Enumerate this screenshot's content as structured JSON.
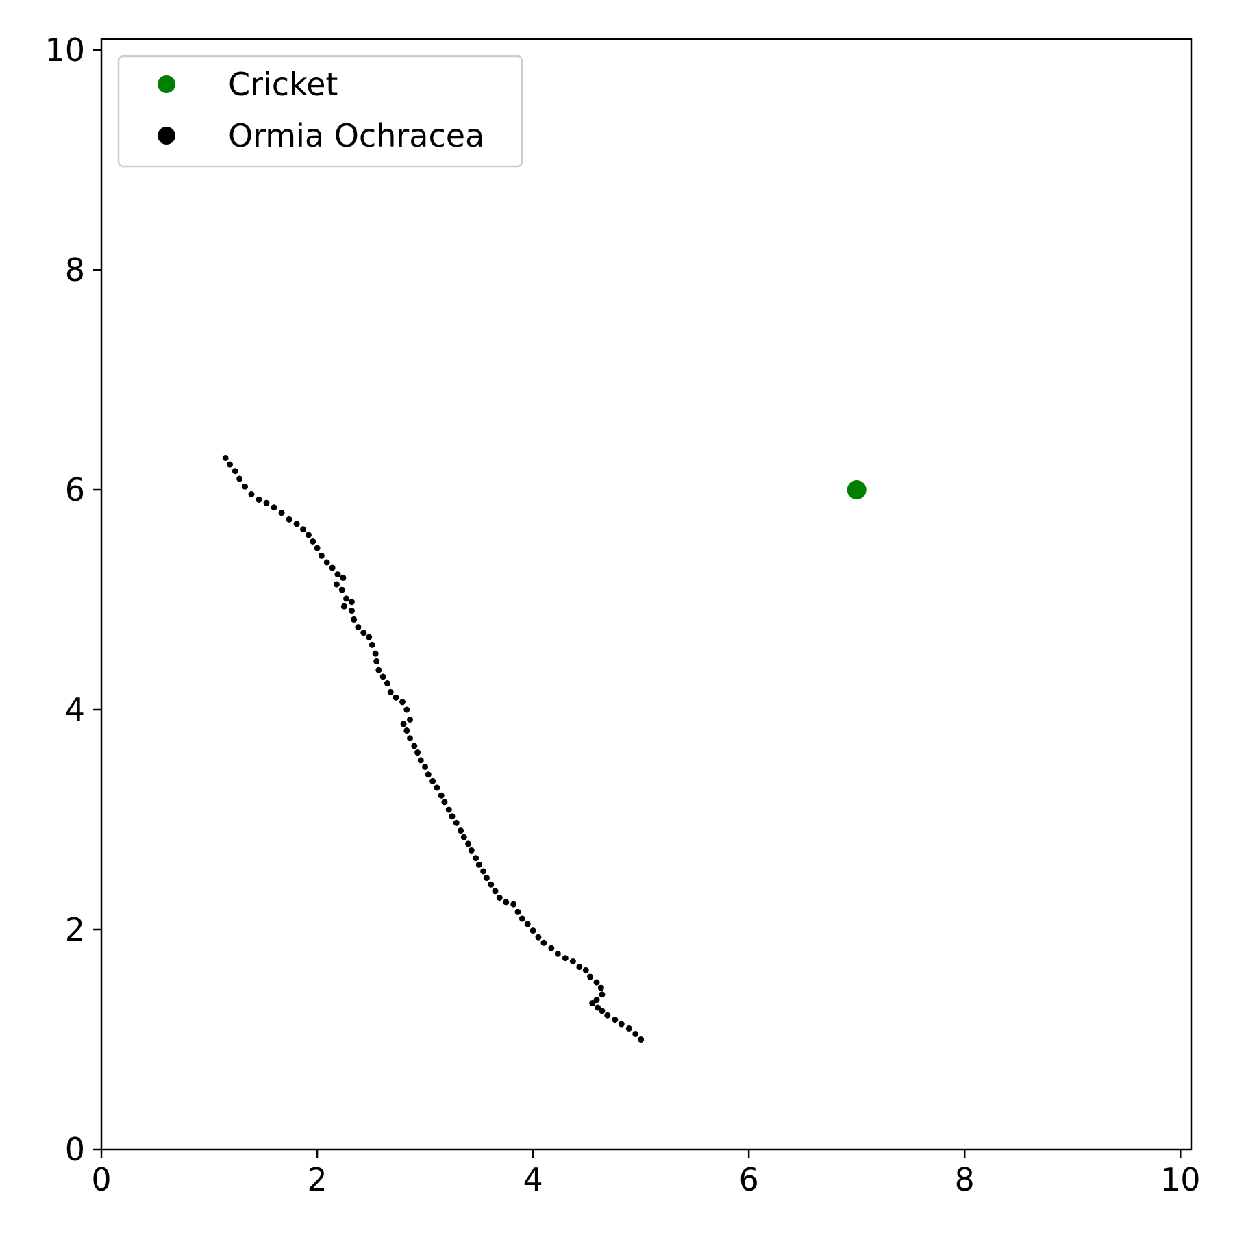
{
  "chart_data": {
    "type": "scatter",
    "title": "",
    "xlabel": "",
    "ylabel": "",
    "xlim": [
      0,
      10.1
    ],
    "ylim": [
      0,
      10.1
    ],
    "x_ticks": [
      0,
      2,
      4,
      6,
      8,
      10
    ],
    "y_ticks": [
      0,
      2,
      4,
      6,
      8,
      10
    ],
    "x_tick_labels": [
      "0",
      "2",
      "4",
      "6",
      "8",
      "10"
    ],
    "y_tick_labels": [
      "0",
      "2",
      "4",
      "6",
      "8",
      "10"
    ],
    "grid": false,
    "legend_position": "top-left",
    "series": [
      {
        "name": "Cricket",
        "color": "#008000",
        "marker": "large-dot",
        "points": [
          [
            7.0,
            6.0
          ]
        ]
      },
      {
        "name": "Ormia Ochracea",
        "color": "#000000",
        "marker": "small-dot",
        "points": [
          [
            5.0,
            1.0
          ],
          [
            4.95,
            1.05
          ],
          [
            4.89,
            1.1
          ],
          [
            4.82,
            1.14
          ],
          [
            4.76,
            1.18
          ],
          [
            4.69,
            1.22
          ],
          [
            4.64,
            1.26
          ],
          [
            4.6,
            1.29
          ],
          [
            4.55,
            1.33
          ],
          [
            4.59,
            1.36
          ],
          [
            4.64,
            1.41
          ],
          [
            4.63,
            1.47
          ],
          [
            4.59,
            1.52
          ],
          [
            4.53,
            1.57
          ],
          [
            4.49,
            1.63
          ],
          [
            4.43,
            1.66
          ],
          [
            4.37,
            1.71
          ],
          [
            4.3,
            1.74
          ],
          [
            4.23,
            1.78
          ],
          [
            4.17,
            1.83
          ],
          [
            4.1,
            1.88
          ],
          [
            4.05,
            1.93
          ],
          [
            4.0,
            1.99
          ],
          [
            3.95,
            2.05
          ],
          [
            3.9,
            2.1
          ],
          [
            3.86,
            2.16
          ],
          [
            3.82,
            2.23
          ],
          [
            3.75,
            2.25
          ],
          [
            3.69,
            2.29
          ],
          [
            3.65,
            2.35
          ],
          [
            3.61,
            2.41
          ],
          [
            3.57,
            2.47
          ],
          [
            3.54,
            2.53
          ],
          [
            3.5,
            2.59
          ],
          [
            3.47,
            2.65
          ],
          [
            3.43,
            2.72
          ],
          [
            3.4,
            2.78
          ],
          [
            3.36,
            2.84
          ],
          [
            3.33,
            2.9
          ],
          [
            3.29,
            2.97
          ],
          [
            3.25,
            3.03
          ],
          [
            3.22,
            3.09
          ],
          [
            3.18,
            3.16
          ],
          [
            3.15,
            3.22
          ],
          [
            3.11,
            3.29
          ],
          [
            3.07,
            3.35
          ],
          [
            3.03,
            3.41
          ],
          [
            3.0,
            3.48
          ],
          [
            2.96,
            3.54
          ],
          [
            2.93,
            3.61
          ],
          [
            2.9,
            3.67
          ],
          [
            2.86,
            3.74
          ],
          [
            2.83,
            3.81
          ],
          [
            2.8,
            3.87
          ],
          [
            2.86,
            3.91
          ],
          [
            2.83,
            4.0
          ],
          [
            2.79,
            4.07
          ],
          [
            2.73,
            4.11
          ],
          [
            2.68,
            4.16
          ],
          [
            2.65,
            4.24
          ],
          [
            2.61,
            4.3
          ],
          [
            2.57,
            4.36
          ],
          [
            2.55,
            4.44
          ],
          [
            2.54,
            4.51
          ],
          [
            2.51,
            4.59
          ],
          [
            2.48,
            4.66
          ],
          [
            2.43,
            4.7
          ],
          [
            2.38,
            4.75
          ],
          [
            2.34,
            4.82
          ],
          [
            2.32,
            4.9
          ],
          [
            2.32,
            4.98
          ],
          [
            2.25,
            4.94
          ],
          [
            2.27,
            5.01
          ],
          [
            2.23,
            5.09
          ],
          [
            2.18,
            5.14
          ],
          [
            2.24,
            5.2
          ],
          [
            2.19,
            5.23
          ],
          [
            2.14,
            5.29
          ],
          [
            2.09,
            5.34
          ],
          [
            2.04,
            5.4
          ],
          [
            2.0,
            5.47
          ],
          [
            1.96,
            5.53
          ],
          [
            1.92,
            5.59
          ],
          [
            1.87,
            5.64
          ],
          [
            1.81,
            5.69
          ],
          [
            1.74,
            5.73
          ],
          [
            1.67,
            5.79
          ],
          [
            1.6,
            5.84
          ],
          [
            1.53,
            5.88
          ],
          [
            1.46,
            5.91
          ],
          [
            1.39,
            5.96
          ],
          [
            1.33,
            6.03
          ],
          [
            1.28,
            6.1
          ],
          [
            1.24,
            6.17
          ],
          [
            1.19,
            6.23
          ],
          [
            1.15,
            6.29
          ]
        ]
      }
    ]
  }
}
